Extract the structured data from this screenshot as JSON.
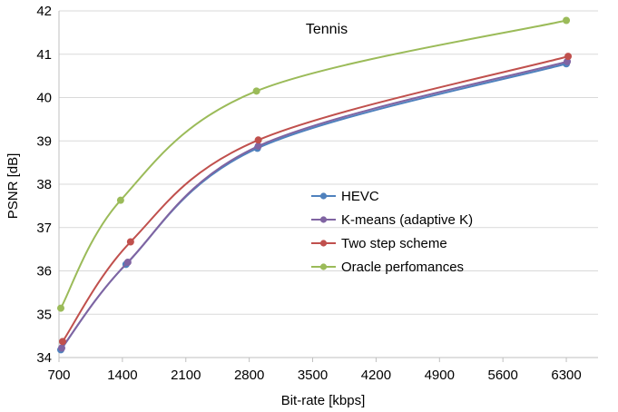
{
  "chart_data": {
    "type": "line",
    "title": "Tennis",
    "xlabel": "Bit-rate [kbps]",
    "ylabel": "PSNR [dB]",
    "xlim": [
      700,
      6650
    ],
    "ylim": [
      34,
      42
    ],
    "xticks": [
      700,
      1400,
      2100,
      2800,
      3500,
      4200,
      4900,
      5600,
      6300
    ],
    "yticks": [
      34,
      35,
      36,
      37,
      38,
      39,
      40,
      41,
      42
    ],
    "grid": "horizontal",
    "legend_position": "center-right",
    "series": [
      {
        "name": "HEVC",
        "color": "#4f81bd",
        "points": [
          [
            720,
            34.18
          ],
          [
            1440,
            36.15
          ],
          [
            2890,
            38.83
          ],
          [
            6300,
            40.78
          ]
        ]
      },
      {
        "name": "K-means (adaptive K)",
        "color": "#8064a2",
        "points": [
          [
            730,
            34.22
          ],
          [
            1460,
            36.2
          ],
          [
            2900,
            38.88
          ],
          [
            6310,
            40.83
          ]
        ]
      },
      {
        "name": "Two step scheme",
        "color": "#c0504d",
        "points": [
          [
            740,
            34.37
          ],
          [
            1490,
            36.67
          ],
          [
            2900,
            39.02
          ],
          [
            6320,
            40.95
          ]
        ]
      },
      {
        "name": "Oracle perfomances",
        "color": "#9bbb59",
        "points": [
          [
            720,
            35.14
          ],
          [
            1380,
            37.63
          ],
          [
            2880,
            40.15
          ],
          [
            6300,
            41.78
          ]
        ]
      }
    ]
  }
}
